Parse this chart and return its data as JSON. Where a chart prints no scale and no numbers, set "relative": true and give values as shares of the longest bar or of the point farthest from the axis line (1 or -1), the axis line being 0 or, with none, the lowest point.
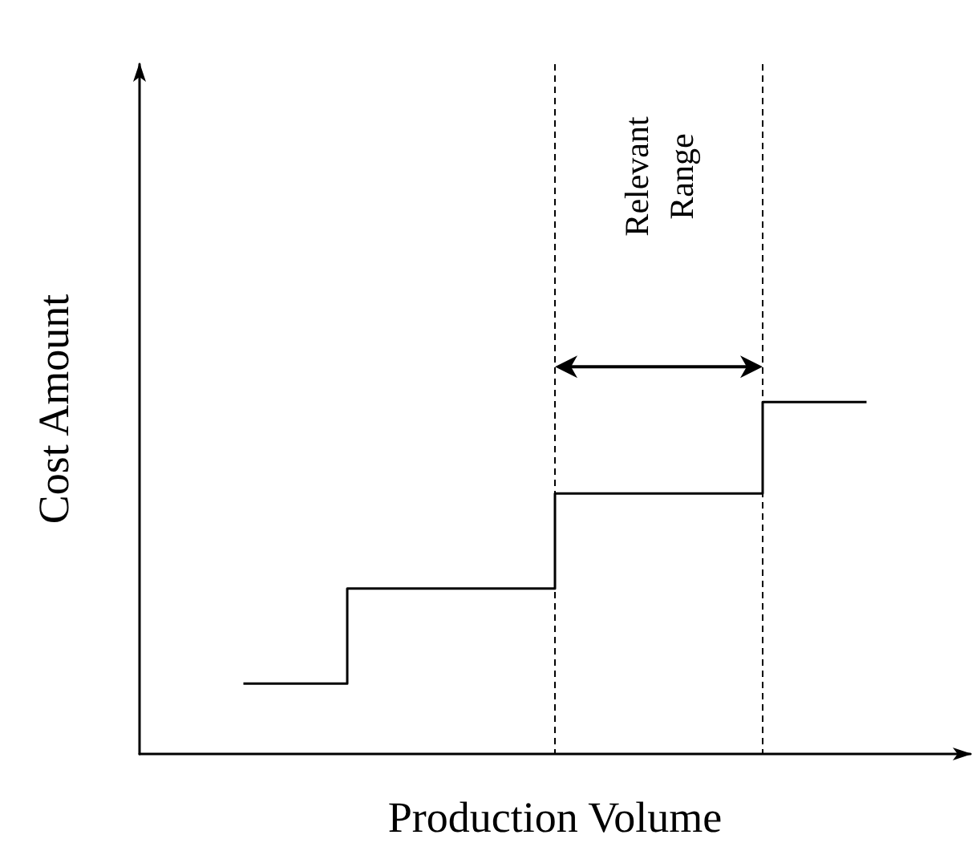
{
  "chart_data": {
    "type": "step",
    "relative": true,
    "xlabel": "Production Volume",
    "ylabel": "Cost Amount",
    "categories": [
      null,
      null,
      null,
      null
    ],
    "values": [
      0.2,
      0.47,
      0.74,
      1
    ],
    "color": "#000000",
    "annotations": [
      "Relevant Range"
    ],
    "grid": false,
    "marker": "none",
    "line_style": "solid"
  }
}
